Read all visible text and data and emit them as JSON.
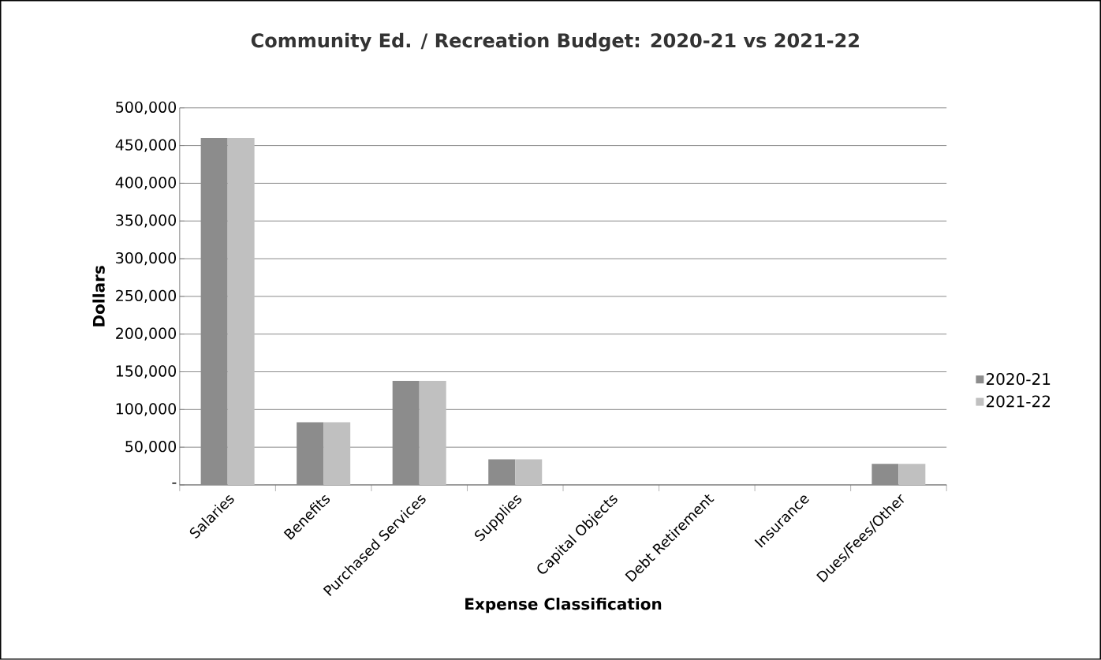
{
  "chart_data": {
    "type": "bar",
    "title": "Community Ed. / Recreation Budget: 2020-21 vs 2021-22",
    "xlabel": "Expense Classification",
    "ylabel": "Dollars",
    "categories": [
      "Salaries",
      "Benefits",
      "Purchased Services",
      "Supplies",
      "Capital Objects",
      "Debt Retirement",
      "Insurance",
      "Dues/Fees/Other"
    ],
    "series": [
      {
        "name": "2020-21",
        "color": "#8c8c8c",
        "values": [
          460000,
          83000,
          138000,
          34000,
          0,
          0,
          0,
          28000
        ]
      },
      {
        "name": "2021-22",
        "color": "#c0c0c0",
        "values": [
          460000,
          83000,
          138000,
          34000,
          0,
          0,
          0,
          28000
        ]
      }
    ],
    "ylim": [
      0,
      500000
    ],
    "yticks": [
      {
        "value": 0,
        "label": "-"
      },
      {
        "value": 50000,
        "label": "50,000"
      },
      {
        "value": 100000,
        "label": "100,000"
      },
      {
        "value": 150000,
        "label": "150,000"
      },
      {
        "value": 200000,
        "label": "200,000"
      },
      {
        "value": 250000,
        "label": "250,000"
      },
      {
        "value": 300000,
        "label": "300,000"
      },
      {
        "value": 350000,
        "label": "350,000"
      },
      {
        "value": 400000,
        "label": "400,000"
      },
      {
        "value": 450000,
        "label": "450,000"
      },
      {
        "value": 500000,
        "label": "500,000"
      }
    ],
    "grid": "y",
    "legend": "right"
  }
}
